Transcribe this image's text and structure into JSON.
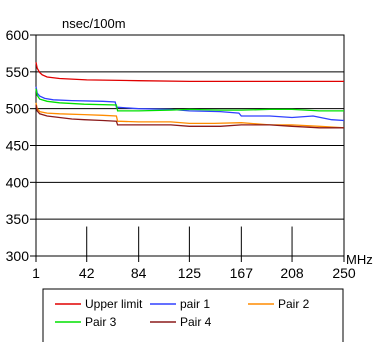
{
  "chart_data": {
    "type": "line",
    "ylabel": "nsec/100m",
    "xlabel": "MHz",
    "xlim": [
      1,
      250
    ],
    "ylim": [
      300,
      600
    ],
    "x_ticks": [
      1,
      42,
      84,
      125,
      167,
      208,
      250
    ],
    "x_tick_labels": [
      "1",
      "42",
      "84",
      "125",
      "167",
      "208",
      "250"
    ],
    "y_ticks": [
      300,
      350,
      400,
      450,
      500,
      550,
      600
    ],
    "y_tick_labels": [
      "300",
      "350",
      "400",
      "450",
      "500",
      "550",
      "600"
    ],
    "grid": true,
    "legend_position": "bottom",
    "series": [
      {
        "name": "Upper limit",
        "color": "#e00000",
        "points": [
          [
            1,
            563
          ],
          [
            2,
            555
          ],
          [
            4,
            549
          ],
          [
            6,
            546
          ],
          [
            10,
            543
          ],
          [
            20,
            541
          ],
          [
            42,
            539
          ],
          [
            84,
            538
          ],
          [
            125,
            537
          ],
          [
            167,
            537
          ],
          [
            208,
            537
          ],
          [
            250,
            537
          ]
        ]
      },
      {
        "name": "pair 1",
        "color": "#3040ff",
        "points": [
          [
            1,
            530
          ],
          [
            2,
            521
          ],
          [
            4,
            517
          ],
          [
            8,
            514
          ],
          [
            15,
            512
          ],
          [
            30,
            511
          ],
          [
            55,
            510
          ],
          [
            65,
            509
          ],
          [
            66,
            502
          ],
          [
            84,
            500
          ],
          [
            110,
            499
          ],
          [
            125,
            497
          ],
          [
            150,
            496
          ],
          [
            165,
            494
          ],
          [
            167,
            490
          ],
          [
            190,
            490
          ],
          [
            208,
            488
          ],
          [
            225,
            490
          ],
          [
            240,
            485
          ],
          [
            250,
            484
          ]
        ]
      },
      {
        "name": "Pair 2",
        "color": "#ff8c00",
        "points": [
          [
            1,
            508
          ],
          [
            2,
            500
          ],
          [
            4,
            496
          ],
          [
            10,
            494
          ],
          [
            20,
            493
          ],
          [
            40,
            492
          ],
          [
            55,
            491
          ],
          [
            66,
            490
          ],
          [
            67,
            483
          ],
          [
            84,
            482
          ],
          [
            110,
            482
          ],
          [
            125,
            480
          ],
          [
            145,
            480
          ],
          [
            167,
            481
          ],
          [
            190,
            478
          ],
          [
            208,
            478
          ],
          [
            230,
            476
          ],
          [
            250,
            474
          ]
        ]
      },
      {
        "name": "Pair 3",
        "color": "#00e000",
        "points": [
          [
            1,
            527
          ],
          [
            2,
            518
          ],
          [
            4,
            513
          ],
          [
            10,
            510
          ],
          [
            20,
            508
          ],
          [
            40,
            506
          ],
          [
            66,
            505
          ],
          [
            67,
            497
          ],
          [
            84,
            497
          ],
          [
            110,
            498
          ],
          [
            125,
            499
          ],
          [
            150,
            498
          ],
          [
            167,
            498
          ],
          [
            190,
            499
          ],
          [
            208,
            499
          ],
          [
            230,
            497
          ],
          [
            250,
            497
          ]
        ]
      },
      {
        "name": "Pair 4",
        "color": "#8b1a1a",
        "points": [
          [
            1,
            505
          ],
          [
            2,
            497
          ],
          [
            4,
            493
          ],
          [
            10,
            490
          ],
          [
            20,
            488
          ],
          [
            30,
            486
          ],
          [
            40,
            485
          ],
          [
            55,
            484
          ],
          [
            66,
            483
          ],
          [
            67,
            478
          ],
          [
            84,
            478
          ],
          [
            110,
            478
          ],
          [
            125,
            476
          ],
          [
            150,
            476
          ],
          [
            167,
            478
          ],
          [
            190,
            478
          ],
          [
            208,
            476
          ],
          [
            230,
            474
          ],
          [
            250,
            474
          ]
        ]
      }
    ],
    "legend_rows": [
      [
        "Upper limit",
        "pair 1",
        "Pair 2"
      ],
      [
        "Pair 3",
        "Pair 4"
      ]
    ]
  }
}
